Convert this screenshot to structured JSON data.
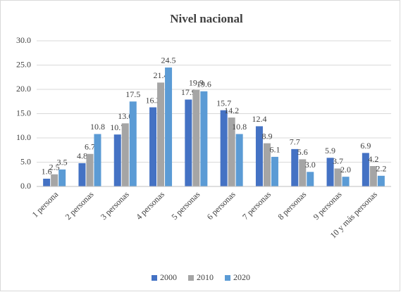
{
  "chart_data": {
    "type": "bar",
    "title": "Nivel nacional",
    "categories": [
      "1 persona",
      "2 personas",
      "3 personas",
      "4 personas",
      "5 personas",
      "6 personas",
      "7 personas",
      "8 personas",
      "9 personas",
      "10 y más personas"
    ],
    "series": [
      {
        "name": "2000",
        "color": "#4472c4",
        "values": [
          1.6,
          4.8,
          10.7,
          16.3,
          17.9,
          15.7,
          12.4,
          7.7,
          5.9,
          6.9
        ],
        "value_labels": [
          "1.6",
          "4.8",
          "10.7",
          "16.3",
          "17.9",
          "15.7",
          "12.4",
          "7.7",
          "5.9",
          "6.9"
        ]
      },
      {
        "name": "2010",
        "color": "#a5a5a5",
        "values": [
          2.5,
          6.7,
          13.0,
          21.4,
          19.9,
          14.2,
          8.9,
          5.6,
          3.7,
          4.2
        ],
        "value_labels": [
          "2.5",
          "6.7",
          "13.0",
          "21.4",
          "19.9",
          "14.2",
          "8.9",
          "5.6",
          "3.7",
          "4.2"
        ]
      },
      {
        "name": "2020",
        "color": "#5b9bd5",
        "values": [
          3.5,
          10.8,
          17.5,
          24.5,
          19.6,
          10.8,
          6.1,
          3.0,
          2.0,
          2.2
        ],
        "value_labels": [
          "3.5",
          "10.8",
          "17.5",
          "24.5",
          "19.6",
          "10.8",
          "6.1",
          "3.0",
          "2.0",
          "2.2"
        ]
      }
    ],
    "ylim": [
      0,
      30
    ],
    "yticks": [
      {
        "value": 0,
        "label": "0.0"
      },
      {
        "value": 5,
        "label": "5.0"
      },
      {
        "value": 10,
        "label": "10.0"
      },
      {
        "value": 15,
        "label": "15.0"
      },
      {
        "value": 20,
        "label": "20.0"
      },
      {
        "value": 25,
        "label": "25.0"
      },
      {
        "value": 30,
        "label": "30.0"
      }
    ],
    "grid": true,
    "legend": "bottom"
  }
}
